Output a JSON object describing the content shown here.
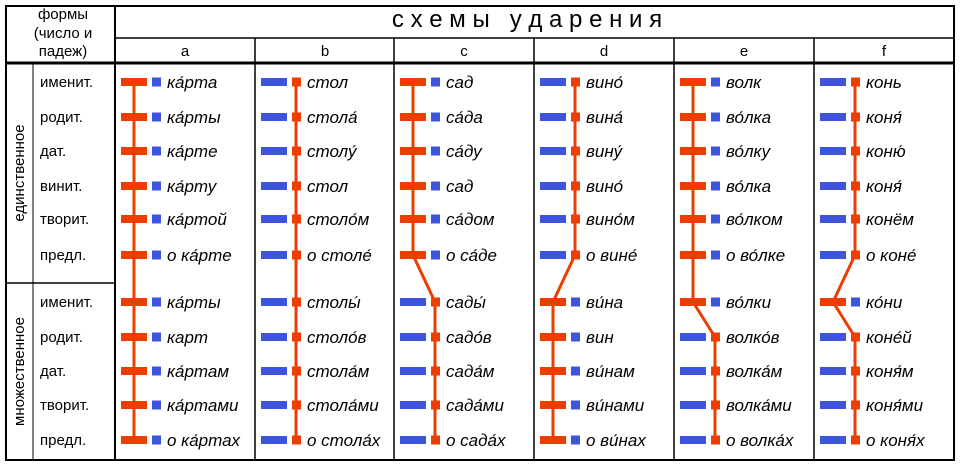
{
  "corner_header": {
    "line1": "формы",
    "line2": "(число и",
    "line3": "падеж)"
  },
  "title": "с х е м ы   у д а р е н и я",
  "groups": [
    {
      "label": "единственное",
      "cases": [
        "именит.",
        "родит.",
        "дат.",
        "винит.",
        "творит.",
        "предл."
      ]
    },
    {
      "label": "множественное",
      "cases": [
        "именит.",
        "родит.",
        "дат.",
        "творит.",
        "предл."
      ]
    }
  ],
  "colors": {
    "stressed": "#ee3d00",
    "unstressed": "#3d55dd",
    "grid": "#000000"
  },
  "schemes": [
    {
      "letter": "a",
      "stress": [
        "stem",
        "stem",
        "stem",
        "stem",
        "stem",
        "stem",
        "stem",
        "stem",
        "stem",
        "stem",
        "stem"
      ],
      "words": [
        "ка́рта",
        "ка́рты",
        "ка́рте",
        "ка́рту",
        "ка́ртой",
        "о ка́рте",
        "ка́рты",
        "карт",
        "ка́ртам",
        "ка́ртами",
        "о ка́ртах"
      ]
    },
    {
      "letter": "b",
      "stress": [
        "end",
        "end",
        "end",
        "end",
        "end",
        "end",
        "end",
        "end",
        "end",
        "end",
        "end"
      ],
      "words": [
        "стол",
        "стола́",
        "столу́",
        "стол",
        "столо́м",
        "о столе́",
        "столы́",
        "столо́в",
        "стола́м",
        "стола́ми",
        "о стола́х"
      ]
    },
    {
      "letter": "c",
      "stress": [
        "stem",
        "stem",
        "stem",
        "stem",
        "stem",
        "stem",
        "end",
        "end",
        "end",
        "end",
        "end"
      ],
      "words": [
        "сад",
        "са́да",
        "са́ду",
        "сад",
        "са́дом",
        "о са́де",
        "сады́",
        "садо́в",
        "сада́м",
        "сада́ми",
        "о сада́х"
      ]
    },
    {
      "letter": "d",
      "stress": [
        "end",
        "end",
        "end",
        "end",
        "end",
        "end",
        "stem",
        "stem",
        "stem",
        "stem",
        "stem"
      ],
      "words": [
        "вино́",
        "вина́",
        "вину́",
        "вино́",
        "вино́м",
        "о вине́",
        "ви́на",
        "вин",
        "ви́нам",
        "ви́нами",
        "о ви́нах"
      ]
    },
    {
      "letter": "e",
      "stress": [
        "stem",
        "stem",
        "stem",
        "stem",
        "stem",
        "stem",
        "stem",
        "end",
        "end",
        "end",
        "end"
      ],
      "words": [
        "волк",
        "во́лка",
        "во́лку",
        "во́лка",
        "во́лком",
        "о во́лке",
        "во́лки",
        "волко́в",
        "волка́м",
        "волка́ми",
        "о волка́х"
      ]
    },
    {
      "letter": "f",
      "stress": [
        "end",
        "end",
        "end",
        "end",
        "end",
        "end",
        "stem",
        "end",
        "end",
        "end",
        "end"
      ],
      "words": [
        "конь",
        "коня́",
        "коню́",
        "коня́",
        "конём",
        "о коне́",
        "ко́ни",
        "коне́й",
        "коня́м",
        "коня́ми",
        "о коня́х"
      ]
    }
  ]
}
